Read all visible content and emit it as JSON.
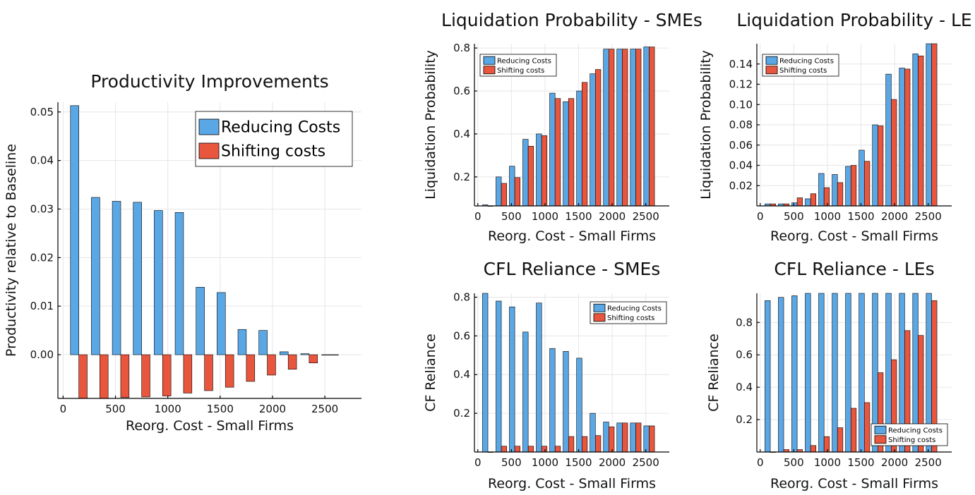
{
  "colors": {
    "reducing": "#5aa7e6",
    "shifting": "#e9563e"
  },
  "chart_data": [
    {
      "id": "prod",
      "type": "bar",
      "title": "Productivity Improvements",
      "xlabel": "Reorg. Cost - Small Firms",
      "ylabel": "Productivity relative to Baseline",
      "x": [
        150,
        350,
        550,
        750,
        950,
        1150,
        1350,
        1550,
        1750,
        1950,
        2150,
        2350,
        2550
      ],
      "xlim": [
        -50,
        2850
      ],
      "ylim": [
        -0.009,
        0.052
      ],
      "xticks": [
        0,
        500,
        1000,
        1500,
        2000,
        2500
      ],
      "yticks": [
        0.0,
        0.01,
        0.02,
        0.03,
        0.04,
        0.05
      ],
      "ytick_labels": [
        "0.00",
        "0.01",
        "0.02",
        "0.03",
        "0.04",
        "0.05"
      ],
      "legend_position": "top-right",
      "series": [
        {
          "name": "Reducing Costs",
          "values": [
            0.0513,
            0.0324,
            0.0316,
            0.0314,
            0.0297,
            0.0293,
            0.0139,
            0.0128,
            0.0052,
            0.005,
            0.0006,
            0.0002,
            0.0
          ]
        },
        {
          "name": "Shifting costs",
          "values": [
            -0.0092,
            -0.009,
            -0.0088,
            -0.0087,
            -0.0085,
            -0.0079,
            -0.0074,
            -0.0067,
            -0.0055,
            -0.0042,
            -0.003,
            -0.0017,
            0.0
          ]
        }
      ]
    },
    {
      "id": "liq_sme",
      "type": "bar",
      "title": "Liquidation Probability - SMEs",
      "xlabel": "Reorg. Cost - Small Firms",
      "ylabel": "Liquidation Probability",
      "x": [
        150,
        350,
        550,
        750,
        950,
        1150,
        1350,
        1550,
        1750,
        1950,
        2150,
        2350,
        2550
      ],
      "xlim": [
        -50,
        2850
      ],
      "ylim": [
        0.065,
        0.82
      ],
      "xticks": [
        0,
        500,
        1000,
        1500,
        2000,
        2500
      ],
      "yticks": [
        0.2,
        0.4,
        0.6,
        0.8
      ],
      "ytick_labels": [
        "0.2",
        "0.4",
        "0.6",
        "0.8"
      ],
      "legend_position": "top-left",
      "series": [
        {
          "name": "Reducing Costs",
          "values": [
            0.07,
            0.2,
            0.25,
            0.375,
            0.4,
            0.59,
            0.55,
            0.6,
            0.68,
            0.795,
            0.795,
            0.795,
            0.805
          ]
        },
        {
          "name": "Shifting costs",
          "values": [
            0.065,
            0.17,
            0.197,
            0.343,
            0.392,
            0.565,
            0.565,
            0.64,
            0.7,
            0.795,
            0.795,
            0.795,
            0.805
          ]
        }
      ]
    },
    {
      "id": "liq_le",
      "type": "bar",
      "title": "Liquidation Probability - LE",
      "xlabel": "Reorg. Cost - Small Firms",
      "ylabel": "Liquidation Probability",
      "x": [
        150,
        350,
        550,
        750,
        950,
        1150,
        1350,
        1550,
        1750,
        1950,
        2150,
        2350,
        2550
      ],
      "xlim": [
        -50,
        2850
      ],
      "ylim": [
        0.0,
        0.16
      ],
      "xticks": [
        0,
        500,
        1000,
        1500,
        2000,
        2500
      ],
      "yticks": [
        0.02,
        0.04,
        0.06,
        0.08,
        0.1,
        0.12,
        0.14
      ],
      "ytick_labels": [
        "0.02",
        "0.04",
        "0.06",
        "0.08",
        "0.10",
        "0.12",
        "0.14"
      ],
      "legend_position": "top-left",
      "series": [
        {
          "name": "Reducing Costs",
          "values": [
            0.002,
            0.002,
            0.003,
            0.007,
            0.032,
            0.031,
            0.039,
            0.055,
            0.08,
            0.13,
            0.136,
            0.15,
            0.16
          ]
        },
        {
          "name": "Shifting costs",
          "values": [
            0.002,
            0.002,
            0.008,
            0.012,
            0.018,
            0.023,
            0.04,
            0.044,
            0.079,
            0.105,
            0.135,
            0.148,
            0.16
          ]
        }
      ]
    },
    {
      "id": "cfl_sme",
      "type": "bar",
      "title": "CFL Reliance - SMEs",
      "xlabel": "Reorg. Cost - Small Firms",
      "ylabel": "CF Reliance",
      "x": [
        150,
        350,
        550,
        750,
        950,
        1150,
        1350,
        1550,
        1750,
        1950,
        2150,
        2350,
        2550
      ],
      "xlim": [
        -50,
        2850
      ],
      "ylim": [
        0.0,
        0.82
      ],
      "xticks": [
        0,
        500,
        1000,
        1500,
        2000,
        2500
      ],
      "yticks": [
        0.2,
        0.4,
        0.6,
        0.8
      ],
      "ytick_labels": [
        "0.2",
        "0.4",
        "0.6",
        "0.8"
      ],
      "legend_position": "top-right",
      "series": [
        {
          "name": "Reducing Costs",
          "values": [
            0.82,
            0.78,
            0.75,
            0.62,
            0.77,
            0.535,
            0.52,
            0.485,
            0.2,
            0.155,
            0.15,
            0.15,
            0.135
          ]
        },
        {
          "name": "Shifting costs",
          "values": [
            0.0,
            0.03,
            0.03,
            0.03,
            0.03,
            0.03,
            0.08,
            0.08,
            0.085,
            0.13,
            0.15,
            0.15,
            0.135
          ]
        }
      ]
    },
    {
      "id": "cfl_le",
      "type": "bar",
      "title": "CFL Reliance - LEs",
      "xlabel": "Reorg. Cost - Small Firms",
      "ylabel": "CF Reliance",
      "x": [
        150,
        350,
        550,
        750,
        950,
        1150,
        1350,
        1550,
        1750,
        1950,
        2150,
        2350,
        2550
      ],
      "xlim": [
        -50,
        2850
      ],
      "ylim": [
        0.0,
        0.98
      ],
      "xticks": [
        0,
        500,
        1000,
        1500,
        2000,
        2500
      ],
      "yticks": [
        0.2,
        0.4,
        0.6,
        0.8
      ],
      "ytick_labels": [
        "0.2",
        "0.4",
        "0.6",
        "0.8"
      ],
      "legend_position": "bottom-right",
      "series": [
        {
          "name": "Reducing Costs",
          "values": [
            0.935,
            0.955,
            0.965,
            0.98,
            0.98,
            0.98,
            0.98,
            0.98,
            0.98,
            0.98,
            0.98,
            0.98,
            0.98
          ]
        },
        {
          "name": "Shifting costs",
          "values": [
            0.0,
            0.015,
            0.015,
            0.04,
            0.095,
            0.15,
            0.27,
            0.305,
            0.49,
            0.57,
            0.75,
            0.72,
            0.935
          ]
        }
      ]
    }
  ]
}
